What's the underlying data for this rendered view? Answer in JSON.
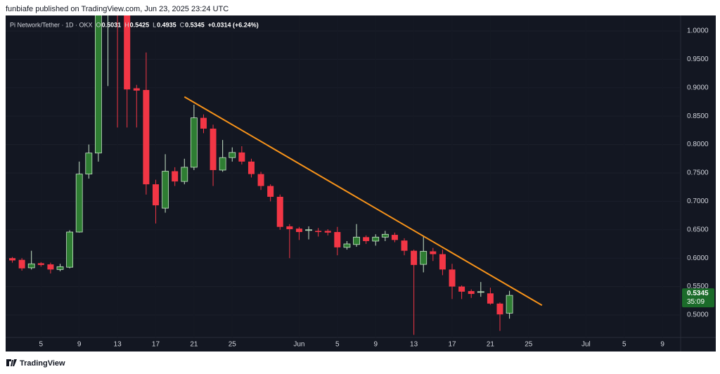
{
  "header": "funbiafe published on TradingView.com, Jun 23, 2025 23:24 UTC",
  "footer": "TradingView",
  "chart_data": {
    "type": "candlestick",
    "title": "Pi Network/Tether · 1D · OKX",
    "ohlc_prefixes": [
      "O",
      "H",
      "L",
      "C"
    ],
    "change": "+0.0314 (+6.24%)",
    "countdown": "35:09",
    "x": [
      2,
      3,
      4,
      5,
      6,
      7,
      8,
      9,
      10,
      11,
      12,
      13,
      14,
      15,
      16,
      17,
      18,
      19,
      20,
      21,
      22,
      23,
      24,
      25,
      26,
      27,
      28,
      29,
      30,
      31,
      32,
      33,
      34,
      35,
      36,
      37,
      38,
      39,
      40,
      41,
      42,
      43,
      44,
      45,
      46,
      47,
      48,
      49,
      50,
      51,
      52,
      53,
      54
    ],
    "open": [
      0.6,
      0.597,
      0.583,
      0.591,
      0.589,
      0.58,
      0.584,
      0.646,
      0.748,
      0.785,
      1.05,
      1.35,
      1.1,
      0.899,
      0.896,
      0.73,
      0.688,
      0.753,
      0.735,
      0.76,
      0.847,
      0.828,
      0.755,
      0.777,
      0.786,
      0.77,
      0.748,
      0.727,
      0.708,
      0.656,
      0.652,
      0.649,
      0.648,
      0.648,
      0.646,
      0.619,
      0.624,
      0.637,
      0.63,
      0.637,
      0.641,
      0.631,
      0.613,
      0.589,
      0.612,
      0.607,
      0.58,
      0.55,
      0.542,
      0.54,
      0.538,
      0.52,
      0.5031
    ],
    "high": [
      0.602,
      0.6,
      0.613,
      0.593,
      0.592,
      0.59,
      0.649,
      0.77,
      0.8,
      1.2,
      1.67,
      1.4,
      1.12,
      0.905,
      0.962,
      0.738,
      0.783,
      0.76,
      0.775,
      0.87,
      0.853,
      0.835,
      0.808,
      0.795,
      0.797,
      0.775,
      0.752,
      0.73,
      0.712,
      0.66,
      0.655,
      0.656,
      0.653,
      0.651,
      0.655,
      0.63,
      0.66,
      0.64,
      0.642,
      0.648,
      0.645,
      0.635,
      0.615,
      0.638,
      0.618,
      0.615,
      0.59,
      0.552,
      0.545,
      0.558,
      0.548,
      0.522,
      0.5425
    ],
    "low": [
      0.592,
      0.578,
      0.58,
      0.585,
      0.573,
      0.577,
      0.582,
      0.645,
      0.74,
      0.77,
      0.903,
      0.83,
      0.83,
      0.83,
      0.712,
      0.661,
      0.68,
      0.727,
      0.73,
      0.755,
      0.82,
      0.727,
      0.752,
      0.77,
      0.765,
      0.742,
      0.72,
      0.7,
      0.65,
      0.6,
      0.632,
      0.633,
      0.638,
      0.64,
      0.605,
      0.615,
      0.62,
      0.625,
      0.622,
      0.63,
      0.628,
      0.605,
      0.465,
      0.575,
      0.595,
      0.57,
      0.528,
      0.528,
      0.53,
      0.532,
      0.518,
      0.472,
      0.4935
    ],
    "close": [
      0.596,
      0.582,
      0.59,
      0.588,
      0.58,
      0.585,
      0.646,
      0.748,
      0.785,
      1.05,
      1.35,
      1.1,
      0.897,
      0.895,
      0.73,
      0.693,
      0.753,
      0.735,
      0.76,
      0.847,
      0.828,
      0.755,
      0.777,
      0.786,
      0.77,
      0.748,
      0.727,
      0.708,
      0.655,
      0.651,
      0.646,
      0.65,
      0.646,
      0.645,
      0.619,
      0.625,
      0.637,
      0.63,
      0.637,
      0.642,
      0.632,
      0.613,
      0.588,
      0.612,
      0.607,
      0.58,
      0.55,
      0.541,
      0.537,
      0.541,
      0.52,
      0.501,
      0.5345
    ],
    "up_color": "#2e7d32",
    "down_color": "#f23645",
    "trendline": {
      "x": [
        20,
        57.4
      ],
      "values": [
        0.884,
        0.517
      ],
      "color": "#f7931a"
    },
    "xlim": [
      1.3,
      71.9
    ],
    "xticks": [
      5,
      9,
      13,
      17,
      21,
      25,
      {
        "value": 32,
        "label": "Jun"
      },
      {
        "value": 36,
        "label": "5"
      },
      {
        "value": 40,
        "label": "9"
      },
      {
        "value": 44,
        "label": "13"
      },
      {
        "value": 48,
        "label": "17"
      },
      {
        "value": 52,
        "label": "21"
      },
      {
        "value": 56,
        "label": "25"
      },
      {
        "value": 62,
        "label": "Jul"
      },
      {
        "value": 66,
        "label": "5"
      },
      {
        "value": 70,
        "label": "9"
      }
    ],
    "ylim": [
      0.4604,
      1.0272
    ],
    "yticks": [
      {
        "value": 0.5,
        "label": "0.5000"
      },
      {
        "value": 0.55,
        "label": "0.5500"
      },
      {
        "value": 0.6,
        "label": "0.6000"
      },
      {
        "value": 0.65,
        "label": "0.6500"
      },
      {
        "value": 0.7,
        "label": "0.7000"
      },
      {
        "value": 0.75,
        "label": "0.7500"
      },
      {
        "value": 0.8,
        "label": "0.8000"
      },
      {
        "value": 0.85,
        "label": "0.8500"
      },
      {
        "value": 0.9,
        "label": "0.9000"
      },
      {
        "value": 0.95,
        "label": "0.9500"
      },
      {
        "value": 1.0,
        "label": "1.0000"
      }
    ],
    "grid": true
  }
}
